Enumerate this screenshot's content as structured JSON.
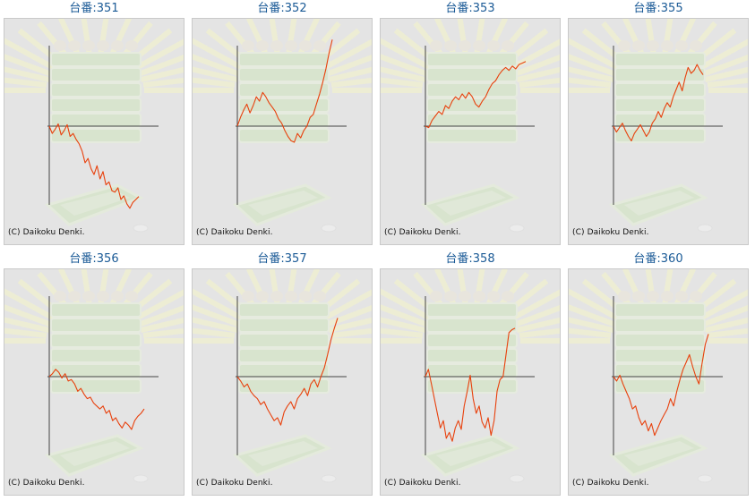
{
  "copyright": "(C) Daikoku Denki.",
  "colors": {
    "title": "#1a5a96",
    "line": "#e8400c",
    "axis": "#444444",
    "panel_bg": "#e4e4e4"
  },
  "chart_data": [
    {
      "type": "line",
      "title": "台番:351",
      "x": [
        0,
        1,
        2,
        3,
        4,
        5,
        6,
        7,
        8,
        9,
        10,
        11,
        12,
        13,
        14,
        15,
        16,
        17,
        18,
        19,
        20,
        21,
        22,
        23,
        24,
        25,
        26,
        27,
        28,
        29,
        30
      ],
      "values": [
        0,
        -10,
        -4,
        3,
        -12,
        -6,
        2,
        -14,
        -10,
        -18,
        -24,
        -34,
        -50,
        -44,
        -58,
        -66,
        -54,
        -72,
        -62,
        -80,
        -76,
        -88,
        -90,
        -84,
        -100,
        -95,
        -106,
        -112,
        -104,
        -100,
        -96
      ]
    },
    {
      "type": "line",
      "title": "台番:352",
      "x": [
        0,
        1,
        2,
        3,
        4,
        5,
        6,
        7,
        8,
        9,
        10,
        11,
        12,
        13,
        14,
        15,
        16,
        17,
        18,
        19,
        20,
        21,
        22,
        23,
        24,
        25,
        26,
        27,
        28,
        29,
        30
      ],
      "values": [
        0,
        12,
        22,
        30,
        18,
        28,
        40,
        34,
        46,
        40,
        32,
        26,
        20,
        10,
        4,
        -6,
        -14,
        -20,
        -22,
        -10,
        -16,
        -6,
        0,
        12,
        16,
        30,
        44,
        60,
        78,
        100,
        118
      ]
    },
    {
      "type": "line",
      "title": "台番:353",
      "x": [
        0,
        1,
        2,
        3,
        4,
        5,
        6,
        7,
        8,
        9,
        10,
        11,
        12,
        13,
        14,
        15,
        16,
        17,
        18,
        19,
        20,
        21,
        22,
        23,
        24,
        25,
        26,
        27,
        28,
        29,
        30
      ],
      "values": [
        0,
        -2,
        8,
        14,
        20,
        16,
        28,
        24,
        34,
        40,
        36,
        44,
        38,
        46,
        40,
        30,
        26,
        34,
        40,
        50,
        58,
        62,
        70,
        76,
        80,
        76,
        82,
        78,
        84,
        86,
        88
      ]
    },
    {
      "type": "line",
      "title": "台番:355",
      "x": [
        0,
        1,
        2,
        3,
        4,
        5,
        6,
        7,
        8,
        9,
        10,
        11,
        12,
        13,
        14,
        15,
        16,
        17,
        18,
        19,
        20,
        21,
        22,
        23,
        24,
        25,
        26,
        27,
        28,
        29,
        30
      ],
      "values": [
        0,
        -8,
        -2,
        4,
        -6,
        -14,
        -20,
        -10,
        -4,
        2,
        -6,
        -14,
        -8,
        4,
        10,
        20,
        12,
        24,
        32,
        26,
        40,
        50,
        60,
        48,
        66,
        80,
        72,
        76,
        84,
        76,
        70
      ]
    },
    {
      "type": "line",
      "title": "台番:356",
      "x": [
        0,
        1,
        2,
        3,
        4,
        5,
        6,
        7,
        8,
        9,
        10,
        11,
        12,
        13,
        14,
        15,
        16,
        17,
        18,
        19,
        20,
        21,
        22,
        23,
        24,
        25,
        26,
        27,
        28,
        29,
        30
      ],
      "values": [
        0,
        4,
        10,
        6,
        -2,
        4,
        -6,
        -4,
        -10,
        -20,
        -16,
        -24,
        -30,
        -28,
        -36,
        -40,
        -44,
        -40,
        -50,
        -46,
        -60,
        -56,
        -64,
        -70,
        -62,
        -66,
        -72,
        -60,
        -54,
        -50,
        -44
      ]
    },
    {
      "type": "line",
      "title": "台番:357",
      "x": [
        0,
        1,
        2,
        3,
        4,
        5,
        6,
        7,
        8,
        9,
        10,
        11,
        12,
        13,
        14,
        15,
        16,
        17,
        18,
        19,
        20,
        21,
        22,
        23,
        24,
        25,
        26,
        27,
        28,
        29,
        30
      ],
      "values": [
        0,
        -6,
        -14,
        -10,
        -20,
        -26,
        -30,
        -38,
        -34,
        -44,
        -52,
        -60,
        -56,
        -66,
        -48,
        -40,
        -34,
        -44,
        -30,
        -24,
        -16,
        -26,
        -10,
        -4,
        -14,
        0,
        12,
        30,
        50,
        66,
        80
      ]
    },
    {
      "type": "line",
      "title": "台番:358",
      "x": [
        0,
        1,
        2,
        3,
        4,
        5,
        6,
        7,
        8,
        9,
        10,
        11,
        12,
        13,
        14,
        15,
        16,
        17,
        18,
        19,
        20,
        21,
        22,
        23,
        24,
        25,
        26,
        27,
        28,
        29,
        30
      ],
      "values": [
        0,
        10,
        -10,
        -30,
        -50,
        -70,
        -60,
        -84,
        -76,
        -88,
        -70,
        -60,
        -72,
        -40,
        -20,
        2,
        -30,
        -50,
        -40,
        -62,
        -70,
        -56,
        -80,
        -60,
        -20,
        -4,
        0,
        30,
        60,
        64,
        66
      ]
    },
    {
      "type": "line",
      "title": "台番:360",
      "x": [
        0,
        1,
        2,
        3,
        4,
        5,
        6,
        7,
        8,
        9,
        10,
        11,
        12,
        13,
        14,
        15,
        16,
        17,
        18,
        19,
        20,
        21,
        22,
        23,
        24,
        25,
        26,
        27,
        28,
        29,
        30
      ],
      "values": [
        0,
        -6,
        2,
        -10,
        -20,
        -30,
        -44,
        -40,
        -56,
        -66,
        -60,
        -74,
        -64,
        -80,
        -70,
        -60,
        -52,
        -44,
        -30,
        -40,
        -20,
        -4,
        10,
        20,
        30,
        14,
        0,
        -10,
        18,
        44,
        58
      ]
    }
  ]
}
